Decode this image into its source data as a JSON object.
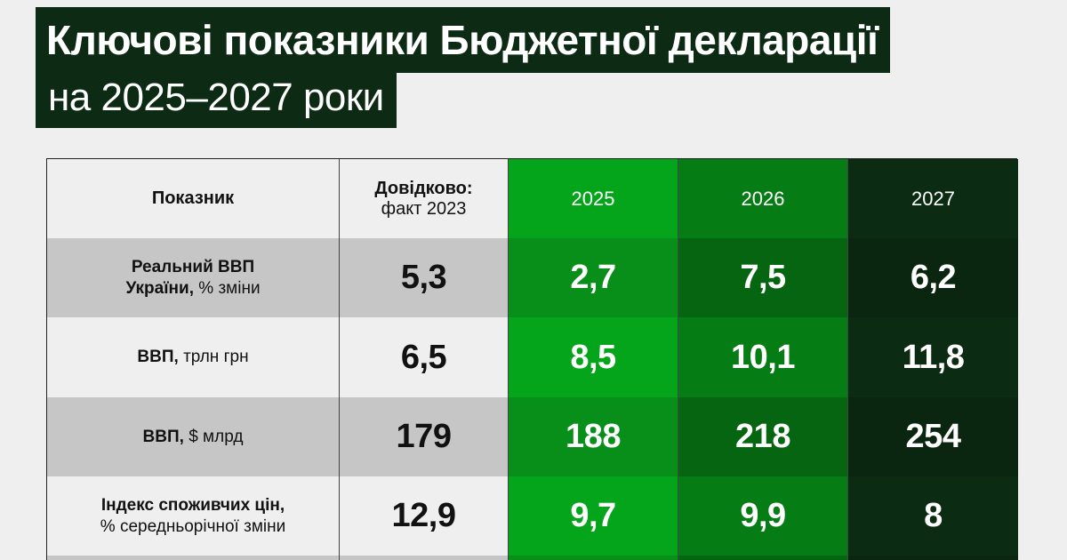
{
  "title": {
    "line1": "Ключові показники Бюджетної декларації",
    "line2": "на 2025–2027 роки"
  },
  "table": {
    "headers": {
      "indicator": "Показник",
      "reference_bold": "Довідково:",
      "reference_sub": "факт 2023",
      "y2025": "2025",
      "y2026": "2026",
      "y2027": "2027"
    },
    "rows": [
      {
        "label_bold_1": "Реальний ВВП",
        "label_bold_2": "України,",
        "label_rest_2": " % зміни",
        "ref": "5,3",
        "v2025": "2,7",
        "v2026": "7,5",
        "v2027": "6,2"
      },
      {
        "label_bold": "ВВП,",
        "label_rest": " трлн грн",
        "ref": "6,5",
        "v2025": "8,5",
        "v2026": "10,1",
        "v2027": "11,8"
      },
      {
        "label_bold": "ВВП,",
        "label_rest": " $ млрд",
        "ref": "179",
        "v2025": "188",
        "v2026": "218",
        "v2027": "254"
      },
      {
        "label_bold_1": "Індекс споживчих цін,",
        "label_rest_2": "% середньорічної зміни",
        "ref": "12,9",
        "v2025": "9,7",
        "v2026": "9,9",
        "v2027": "8"
      }
    ]
  },
  "colors": {
    "title_bg": "#0d2a14",
    "col2025": "#05a51b",
    "col2026": "#057c14",
    "col2027": "#0b2b12",
    "grey_row": "#c6c6c6",
    "light_row": "#efefef"
  }
}
